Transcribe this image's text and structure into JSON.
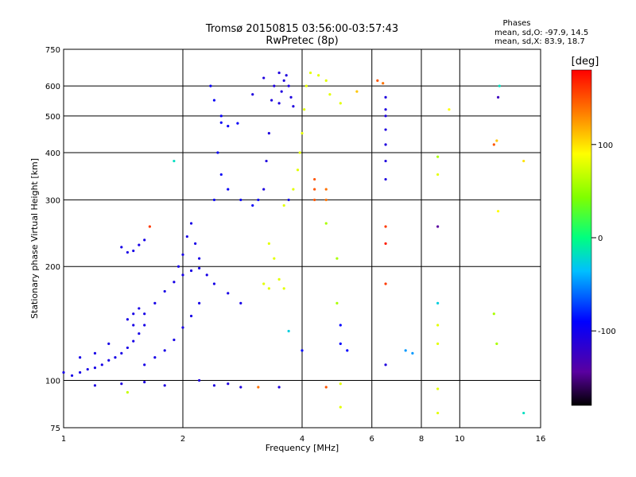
{
  "chart_data": {
    "type": "scatter",
    "title": "Tromsø 20150815 03:56:00-03:57:43",
    "subtitle": "RwPretec (8p)",
    "xlabel": "Frequency [MHz]",
    "ylabel": "Stationary phase Virtual Height [km]",
    "x_scale": "log",
    "y_scale": "log",
    "xlim": [
      1,
      16
    ],
    "ylim": [
      75,
      750
    ],
    "x_ticks": [
      1,
      2,
      4,
      6,
      8,
      10,
      16
    ],
    "x_tick_labels": [
      "1",
      "2",
      "4",
      "6",
      "8",
      "10",
      "16"
    ],
    "y_ticks": [
      75,
      100,
      200,
      300,
      400,
      500,
      600,
      750
    ],
    "y_tick_labels": [
      "75",
      "100",
      "200",
      "300",
      "400",
      "500",
      "600",
      "750"
    ],
    "grid": true,
    "stats": {
      "heading": "Phases",
      "line_o": "mean, sd,O: -97.9, 14.5",
      "line_x": "mean, sd,X: 83.9, 18.7"
    },
    "colorbar": {
      "label": "[deg]",
      "range": [
        -180,
        180
      ],
      "ticks": [
        100,
        0,
        -100
      ],
      "tick_labels": [
        "100",
        "0",
        "-100"
      ]
    },
    "points": [
      [
        1.0,
        105,
        -105
      ],
      [
        1.05,
        103,
        -105
      ],
      [
        1.1,
        105,
        -105
      ],
      [
        1.15,
        107,
        -105
      ],
      [
        1.2,
        108,
        -105
      ],
      [
        1.25,
        110,
        -105
      ],
      [
        1.3,
        113,
        -105
      ],
      [
        1.35,
        115,
        -105
      ],
      [
        1.4,
        118,
        -105
      ],
      [
        1.45,
        122,
        -105
      ],
      [
        1.5,
        127,
        -105
      ],
      [
        1.55,
        133,
        -105
      ],
      [
        1.6,
        140,
        -105
      ],
      [
        1.5,
        150,
        -105
      ],
      [
        1.55,
        155,
        -105
      ],
      [
        1.45,
        145,
        -105
      ],
      [
        1.1,
        115,
        -105
      ],
      [
        1.2,
        118,
        -105
      ],
      [
        1.3,
        125,
        -105
      ],
      [
        1.4,
        225,
        -105
      ],
      [
        1.45,
        218,
        -105
      ],
      [
        1.5,
        220,
        -105
      ],
      [
        1.55,
        228,
        -105
      ],
      [
        1.6,
        235,
        -105
      ],
      [
        1.5,
        140,
        -105
      ],
      [
        1.6,
        150,
        -105
      ],
      [
        1.7,
        160,
        -105
      ],
      [
        1.8,
        172,
        -105
      ],
      [
        1.9,
        182,
        -105
      ],
      [
        2.0,
        190,
        -105
      ],
      [
        2.1,
        195,
        -105
      ],
      [
        2.2,
        198,
        -105
      ],
      [
        1.6,
        110,
        -105
      ],
      [
        1.7,
        115,
        -105
      ],
      [
        1.8,
        120,
        -105
      ],
      [
        1.9,
        128,
        -105
      ],
      [
        2.0,
        138,
        -105
      ],
      [
        2.1,
        148,
        -105
      ],
      [
        2.2,
        160,
        -105
      ],
      [
        1.95,
        200,
        -105
      ],
      [
        2.0,
        215,
        -105
      ],
      [
        2.05,
        240,
        -105
      ],
      [
        2.1,
        260,
        -105
      ],
      [
        2.15,
        230,
        -105
      ],
      [
        2.2,
        210,
        -105
      ],
      [
        2.3,
        190,
        -105
      ],
      [
        2.4,
        180,
        -105
      ],
      [
        2.6,
        170,
        -105
      ],
      [
        2.8,
        160,
        -105
      ],
      [
        2.4,
        300,
        -95
      ],
      [
        2.45,
        400,
        -95
      ],
      [
        2.5,
        500,
        -95
      ],
      [
        2.4,
        550,
        -95
      ],
      [
        2.35,
        600,
        -95
      ],
      [
        2.5,
        350,
        -95
      ],
      [
        2.6,
        320,
        -95
      ],
      [
        2.8,
        300,
        -95
      ],
      [
        3.0,
        290,
        -95
      ],
      [
        3.1,
        300,
        -95
      ],
      [
        2.5,
        480,
        -95
      ],
      [
        2.6,
        470,
        -95
      ],
      [
        2.75,
        478,
        -95
      ],
      [
        3.2,
        320,
        -110
      ],
      [
        3.25,
        380,
        -110
      ],
      [
        3.3,
        450,
        -110
      ],
      [
        3.35,
        550,
        -110
      ],
      [
        3.2,
        630,
        -110
      ],
      [
        3.5,
        650,
        -110
      ],
      [
        3.6,
        620,
        -110
      ],
      [
        3.7,
        600,
        -110
      ],
      [
        3.75,
        560,
        -110
      ],
      [
        3.8,
        530,
        -110
      ],
      [
        3.4,
        600,
        -110
      ],
      [
        3.55,
        580,
        -110
      ],
      [
        3.65,
        640,
        -110
      ],
      [
        3.5,
        540,
        -110
      ],
      [
        3.0,
        570,
        -110
      ],
      [
        3.6,
        290,
        80
      ],
      [
        3.7,
        300,
        80
      ],
      [
        3.8,
        320,
        80
      ],
      [
        3.9,
        360,
        80
      ],
      [
        3.95,
        400,
        80
      ],
      [
        4.0,
        450,
        80
      ],
      [
        4.05,
        520,
        80
      ],
      [
        4.1,
        600,
        80
      ],
      [
        4.2,
        650,
        80
      ],
      [
        4.4,
        640,
        80
      ],
      [
        4.6,
        620,
        80
      ],
      [
        3.3,
        230,
        80
      ],
      [
        3.4,
        210,
        80
      ],
      [
        3.2,
        180,
        80
      ],
      [
        3.3,
        175,
        80
      ],
      [
        3.5,
        185,
        80
      ],
      [
        3.6,
        175,
        80
      ],
      [
        2.2,
        100,
        -110
      ],
      [
        2.4,
        97,
        -110
      ],
      [
        2.6,
        98,
        -110
      ],
      [
        2.8,
        96,
        -110
      ],
      [
        1.2,
        97,
        -110
      ],
      [
        1.4,
        98,
        -110
      ],
      [
        1.6,
        99,
        -110
      ],
      [
        1.8,
        97,
        -110
      ],
      [
        3.1,
        96,
        140
      ],
      [
        3.5,
        96,
        -110
      ],
      [
        4.6,
        96,
        150
      ],
      [
        5.0,
        98,
        80
      ],
      [
        5.0,
        85,
        80
      ],
      [
        1.45,
        93,
        70
      ],
      [
        1.65,
        255,
        160
      ],
      [
        1.9,
        380,
        -20
      ],
      [
        3.7,
        135,
        -30
      ],
      [
        3.7,
        300,
        -100
      ],
      [
        4.3,
        340,
        150
      ],
      [
        4.3,
        320,
        150
      ],
      [
        4.3,
        300,
        150
      ],
      [
        4.6,
        320,
        140
      ],
      [
        4.6,
        300,
        140
      ],
      [
        4.6,
        260,
        60
      ],
      [
        4.9,
        210,
        60
      ],
      [
        4.9,
        160,
        60
      ],
      [
        5.0,
        125,
        -90
      ],
      [
        5.2,
        120,
        -90
      ],
      [
        5.0,
        140,
        -90
      ],
      [
        4.0,
        120,
        -90
      ],
      [
        6.2,
        620,
        150
      ],
      [
        6.5,
        560,
        -110
      ],
      [
        6.5,
        520,
        -110
      ],
      [
        6.5,
        500,
        -110
      ],
      [
        6.5,
        420,
        -110
      ],
      [
        6.5,
        380,
        -110
      ],
      [
        6.5,
        340,
        -110
      ],
      [
        6.5,
        255,
        160
      ],
      [
        6.5,
        230,
        170
      ],
      [
        6.5,
        180,
        160
      ],
      [
        6.5,
        110,
        -110
      ],
      [
        6.5,
        460,
        -110
      ],
      [
        7.3,
        120,
        -50
      ],
      [
        7.6,
        118,
        -50
      ],
      [
        8.8,
        160,
        -30
      ],
      [
        8.8,
        140,
        80
      ],
      [
        8.8,
        125,
        80
      ],
      [
        8.8,
        95,
        80
      ],
      [
        8.8,
        82,
        80
      ],
      [
        8.8,
        255,
        -150
      ],
      [
        8.8,
        350,
        80
      ],
      [
        8.8,
        390,
        60
      ],
      [
        9.4,
        520,
        90
      ],
      [
        12.2,
        420,
        150
      ],
      [
        12.4,
        430,
        110
      ],
      [
        12.5,
        560,
        -130
      ],
      [
        12.6,
        600,
        -20
      ],
      [
        12.5,
        280,
        90
      ],
      [
        12.2,
        150,
        60
      ],
      [
        12.4,
        125,
        60
      ],
      [
        14.5,
        380,
        100
      ],
      [
        14.5,
        82,
        -20
      ],
      [
        4.7,
        570,
        80
      ],
      [
        5.0,
        540,
        80
      ],
      [
        5.5,
        580,
        110
      ],
      [
        6.4,
        610,
        140
      ]
    ]
  }
}
